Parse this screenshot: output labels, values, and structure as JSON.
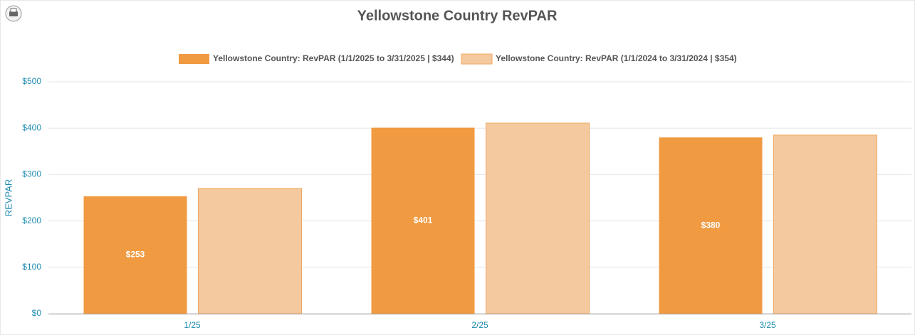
{
  "chart_data": {
    "type": "bar",
    "title": "Yellowstone Country RevPAR",
    "y_label": "REVPAR",
    "categories": [
      "1/25",
      "2/25",
      "3/25"
    ],
    "series": [
      {
        "name": "Yellowstone Country: RevPAR (1/1/2025 to 3/31/2025 | $344)",
        "color": "#f09a42",
        "values": [
          253,
          401,
          380
        ],
        "value_labels": [
          "$253",
          "$401",
          "$380"
        ]
      },
      {
        "name": "Yellowstone Country: RevPAR (1/1/2024 to 3/31/2024 | $354)",
        "color": "#f5c99f",
        "values": [
          270,
          411,
          385
        ]
      }
    ],
    "ylim": [
      0,
      500
    ],
    "yticks": [
      {
        "value": 0,
        "label": "$0"
      },
      {
        "value": 100,
        "label": "$100"
      },
      {
        "value": 200,
        "label": "$200"
      },
      {
        "value": 300,
        "label": "$300"
      },
      {
        "value": 400,
        "label": "$400"
      },
      {
        "value": 500,
        "label": "$500"
      }
    ],
    "grid": true
  }
}
